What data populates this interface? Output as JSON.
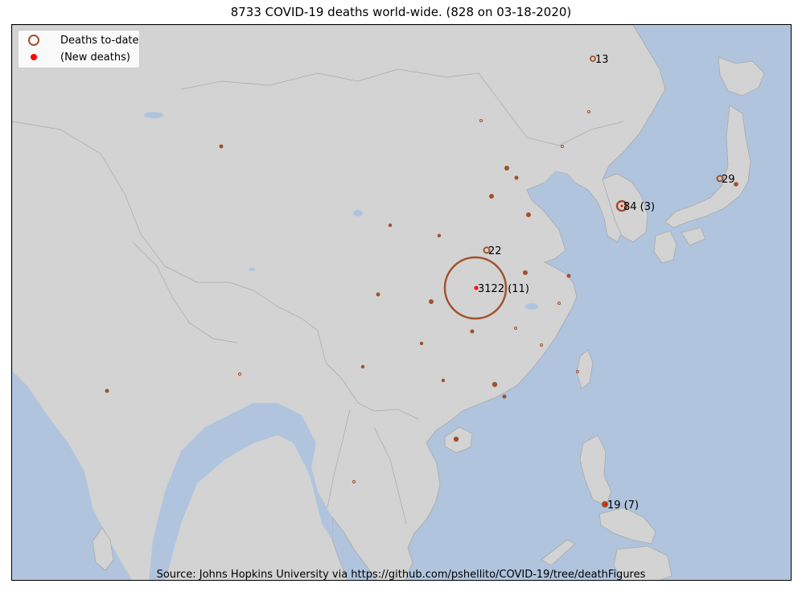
{
  "title": "8733 COVID-19 deaths world-wide. (828 on 03-18-2020)",
  "source": "Source: Johns Hopkins University via https://github.com/pshellito/COVID-19/tree/deathFigures",
  "legend": {
    "deaths_label": "Deaths to-date",
    "new_label": "(New deaths)"
  },
  "colors": {
    "land": "#d3d3d3",
    "ocean": "#b0c4de",
    "deaths": "#a0522d",
    "new_deaths": "#ff0000",
    "border": "#a9a9a9"
  },
  "labels": [
    {
      "text": "3122 (11)"
    },
    {
      "text": "84 (3)"
    },
    {
      "text": "29"
    },
    {
      "text": "22"
    },
    {
      "text": "19 (7)"
    },
    {
      "text": "13"
    }
  ]
}
